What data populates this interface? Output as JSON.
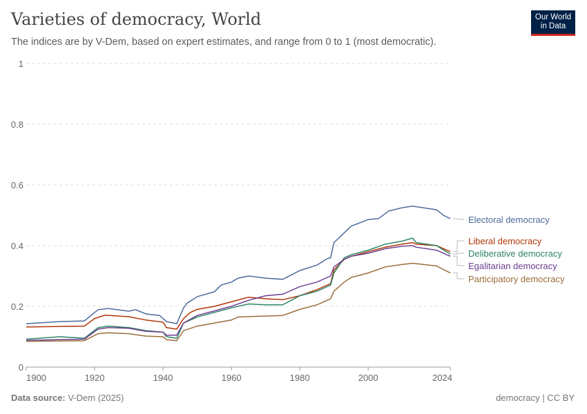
{
  "title": "Varieties of democracy, World",
  "subtitle": "The indices are by V-Dem, based on expert estimates, and range from 0 to 1 (most democratic).",
  "logo": {
    "line1": "Our World",
    "line2": "in Data"
  },
  "footer": {
    "source_label": "Data source:",
    "source": "V-Dem (2025)",
    "right": "democracy | CC BY"
  },
  "chart_data": {
    "type": "line",
    "title": "Varieties of democracy, World",
    "xlim": [
      1900,
      2024
    ],
    "ylim": [
      0,
      1
    ],
    "x_ticks": [
      "1900",
      "1920",
      "1940",
      "1960",
      "1980",
      "2000",
      "2024"
    ],
    "y_ticks": [
      "0",
      "0.2",
      "0.4",
      "0.6",
      "0.8",
      "1"
    ],
    "grid": "horizontal dashed",
    "legend": "right (line-end labels)",
    "series": [
      {
        "name": "Electoral democracy",
        "color": "#4c6a9c",
        "points": [
          [
            1900,
            0.143
          ],
          [
            1910,
            0.15
          ],
          [
            1917,
            0.152
          ],
          [
            1921,
            0.189
          ],
          [
            1924,
            0.193
          ],
          [
            1930,
            0.184
          ],
          [
            1932,
            0.189
          ],
          [
            1935,
            0.175
          ],
          [
            1939,
            0.17
          ],
          [
            1941,
            0.15
          ],
          [
            1944,
            0.143
          ],
          [
            1946,
            0.195
          ],
          [
            1947,
            0.21
          ],
          [
            1950,
            0.232
          ],
          [
            1955,
            0.248
          ],
          [
            1957,
            0.27
          ],
          [
            1960,
            0.28
          ],
          [
            1962,
            0.293
          ],
          [
            1965,
            0.3
          ],
          [
            1970,
            0.293
          ],
          [
            1975,
            0.289
          ],
          [
            1980,
            0.318
          ],
          [
            1985,
            0.336
          ],
          [
            1988,
            0.357
          ],
          [
            1989,
            0.36
          ],
          [
            1990,
            0.41
          ],
          [
            1995,
            0.464
          ],
          [
            2000,
            0.486
          ],
          [
            2003,
            0.489
          ],
          [
            2006,
            0.514
          ],
          [
            2010,
            0.525
          ],
          [
            2013,
            0.53
          ],
          [
            2016,
            0.525
          ],
          [
            2020,
            0.518
          ],
          [
            2022,
            0.5
          ],
          [
            2024,
            0.489
          ]
        ]
      },
      {
        "name": "Liberal democracy",
        "color": "#b13507",
        "points": [
          [
            1900,
            0.132
          ],
          [
            1917,
            0.135
          ],
          [
            1920,
            0.16
          ],
          [
            1923,
            0.171
          ],
          [
            1930,
            0.166
          ],
          [
            1935,
            0.155
          ],
          [
            1940,
            0.148
          ],
          [
            1941,
            0.13
          ],
          [
            1944,
            0.125
          ],
          [
            1946,
            0.16
          ],
          [
            1948,
            0.18
          ],
          [
            1950,
            0.19
          ],
          [
            1955,
            0.2
          ],
          [
            1960,
            0.215
          ],
          [
            1965,
            0.23
          ],
          [
            1970,
            0.225
          ],
          [
            1975,
            0.222
          ],
          [
            1980,
            0.235
          ],
          [
            1985,
            0.255
          ],
          [
            1989,
            0.275
          ],
          [
            1990,
            0.32
          ],
          [
            1993,
            0.355
          ],
          [
            1995,
            0.365
          ],
          [
            2000,
            0.38
          ],
          [
            2005,
            0.395
          ],
          [
            2010,
            0.405
          ],
          [
            2013,
            0.41
          ],
          [
            2014,
            0.405
          ],
          [
            2020,
            0.4
          ],
          [
            2024,
            0.38
          ]
        ]
      },
      {
        "name": "Deliberative democracy",
        "color": "#2c8465",
        "points": [
          [
            1900,
            0.092
          ],
          [
            1910,
            0.1
          ],
          [
            1917,
            0.095
          ],
          [
            1921,
            0.13
          ],
          [
            1924,
            0.135
          ],
          [
            1930,
            0.13
          ],
          [
            1935,
            0.12
          ],
          [
            1940,
            0.115
          ],
          [
            1941,
            0.1
          ],
          [
            1944,
            0.095
          ],
          [
            1946,
            0.145
          ],
          [
            1950,
            0.165
          ],
          [
            1955,
            0.18
          ],
          [
            1960,
            0.195
          ],
          [
            1965,
            0.208
          ],
          [
            1970,
            0.205
          ],
          [
            1975,
            0.205
          ],
          [
            1980,
            0.235
          ],
          [
            1985,
            0.25
          ],
          [
            1989,
            0.27
          ],
          [
            1990,
            0.31
          ],
          [
            1993,
            0.36
          ],
          [
            1995,
            0.37
          ],
          [
            2000,
            0.385
          ],
          [
            2005,
            0.405
          ],
          [
            2010,
            0.415
          ],
          [
            2013,
            0.425
          ],
          [
            2014,
            0.41
          ],
          [
            2020,
            0.4
          ],
          [
            2024,
            0.372
          ]
        ]
      },
      {
        "name": "Egalitarian democracy",
        "color": "#6d3e91",
        "points": [
          [
            1900,
            0.088
          ],
          [
            1917,
            0.092
          ],
          [
            1921,
            0.125
          ],
          [
            1924,
            0.13
          ],
          [
            1930,
            0.128
          ],
          [
            1935,
            0.118
          ],
          [
            1940,
            0.115
          ],
          [
            1941,
            0.105
          ],
          [
            1944,
            0.105
          ],
          [
            1946,
            0.145
          ],
          [
            1950,
            0.17
          ],
          [
            1955,
            0.185
          ],
          [
            1960,
            0.2
          ],
          [
            1965,
            0.22
          ],
          [
            1970,
            0.235
          ],
          [
            1975,
            0.24
          ],
          [
            1980,
            0.265
          ],
          [
            1985,
            0.28
          ],
          [
            1989,
            0.3
          ],
          [
            1990,
            0.33
          ],
          [
            1993,
            0.355
          ],
          [
            1995,
            0.365
          ],
          [
            2000,
            0.375
          ],
          [
            2005,
            0.39
          ],
          [
            2010,
            0.398
          ],
          [
            2013,
            0.4
          ],
          [
            2014,
            0.395
          ],
          [
            2020,
            0.385
          ],
          [
            2024,
            0.365
          ]
        ]
      },
      {
        "name": "Participatory democracy",
        "color": "#996d39",
        "points": [
          [
            1900,
            0.085
          ],
          [
            1917,
            0.087
          ],
          [
            1921,
            0.11
          ],
          [
            1924,
            0.113
          ],
          [
            1930,
            0.11
          ],
          [
            1935,
            0.102
          ],
          [
            1940,
            0.1
          ],
          [
            1941,
            0.09
          ],
          [
            1944,
            0.087
          ],
          [
            1946,
            0.12
          ],
          [
            1950,
            0.135
          ],
          [
            1955,
            0.145
          ],
          [
            1960,
            0.155
          ],
          [
            1962,
            0.165
          ],
          [
            1970,
            0.168
          ],
          [
            1975,
            0.17
          ],
          [
            1980,
            0.19
          ],
          [
            1985,
            0.205
          ],
          [
            1989,
            0.225
          ],
          [
            1990,
            0.25
          ],
          [
            1993,
            0.28
          ],
          [
            1995,
            0.295
          ],
          [
            2000,
            0.31
          ],
          [
            2005,
            0.33
          ],
          [
            2010,
            0.338
          ],
          [
            2013,
            0.342
          ],
          [
            2016,
            0.338
          ],
          [
            2020,
            0.333
          ],
          [
            2024,
            0.31
          ]
        ]
      }
    ]
  }
}
